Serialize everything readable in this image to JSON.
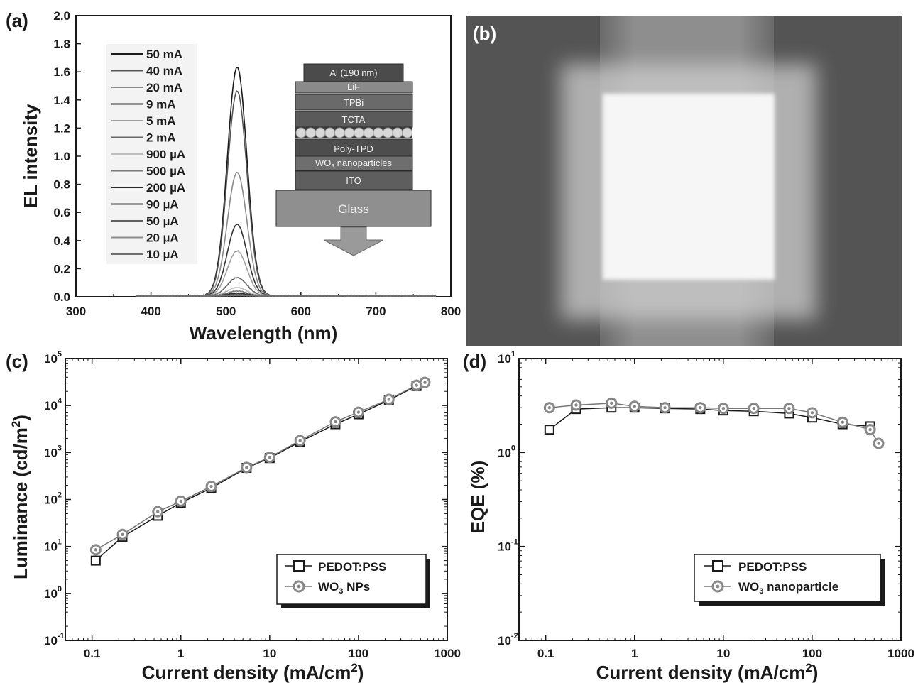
{
  "panels": {
    "a": "(a)",
    "b": "(b)",
    "c": "(c)",
    "d": "(d)"
  },
  "chart_data": [
    {
      "id": "a",
      "type": "line",
      "xlabel": "Wavelength (nm)",
      "ylabel": "EL intensity",
      "xlim": [
        300,
        800
      ],
      "ylim": [
        0.0,
        2.0
      ],
      "xticks": [
        "300",
        "400",
        "500",
        "600",
        "700",
        "800"
      ],
      "yticks": [
        "0.0",
        "0.2",
        "0.4",
        "0.6",
        "0.8",
        "1.0",
        "1.2",
        "1.4",
        "1.6",
        "1.8",
        "2.0"
      ],
      "x_range_measured": [
        380,
        780
      ],
      "peak_wavelength": 515,
      "series": [
        {
          "name": "50 mA",
          "peak": 1.63
        },
        {
          "name": "40 mA",
          "peak": 1.46
        },
        {
          "name": "20 mA",
          "peak": 0.88
        },
        {
          "name": "9 mA",
          "peak": 0.51
        },
        {
          "name": "5 mA",
          "peak": 0.32
        },
        {
          "name": "2 mA",
          "peak": 0.13
        },
        {
          "name": "900 µA",
          "peak": 0.06
        },
        {
          "name": "500 µA",
          "peak": 0.035
        },
        {
          "name": "200 µA",
          "peak": 0.02
        },
        {
          "name": "90 µA",
          "peak": 0.012
        },
        {
          "name": "50 µA",
          "peak": 0.008
        },
        {
          "name": "20 µA",
          "peak": 0.005
        },
        {
          "name": "10 µA",
          "peak": 0.003
        }
      ],
      "legend_placement": "top-left",
      "inset": {
        "layers": [
          "Al (190 nm)",
          "LiF",
          "TPBi",
          "TCTA",
          "Poly-TPD",
          "WO",
          "3",
          " nanoparticles",
          "ITO",
          "Glass"
        ]
      }
    },
    {
      "id": "c",
      "type": "line",
      "scale": "log-log",
      "xlabel": "Current density (mA/cm",
      "xlabel_sup": "2",
      "xlabel_end": ")",
      "ylabel": "Luminance (cd/m",
      "ylabel_sup": "2",
      "ylabel_end": ")",
      "xlim": [
        0.05,
        1000
      ],
      "ylim": [
        0.1,
        100000
      ],
      "xticks": [
        "0.1",
        "1",
        "10",
        "100",
        "1000"
      ],
      "yticks": [
        {
          "base": "10",
          "exp": "-1"
        },
        {
          "base": "10",
          "exp": "0"
        },
        {
          "base": "10",
          "exp": "1"
        },
        {
          "base": "10",
          "exp": "2"
        },
        {
          "base": "10",
          "exp": "3"
        },
        {
          "base": "10",
          "exp": "4"
        },
        {
          "base": "10",
          "exp": "5"
        }
      ],
      "legend_placement": "bottom-right",
      "series": [
        {
          "name": "PEDOT:PSS",
          "marker": "square",
          "x": [
            0.11,
            0.22,
            0.55,
            1.0,
            2.2,
            5.5,
            10,
            22,
            55,
            100,
            220,
            450
          ],
          "y": [
            5,
            16,
            45,
            85,
            175,
            470,
            760,
            1700,
            4000,
            6500,
            13000,
            26000
          ]
        },
        {
          "name": "WO",
          "name_sub": "3",
          "name_end": " NPs",
          "marker": "circle",
          "x": [
            0.11,
            0.22,
            0.55,
            1.0,
            2.2,
            5.5,
            10,
            22,
            55,
            100,
            220,
            450,
            560
          ],
          "y": [
            8.5,
            18,
            55,
            92,
            190,
            480,
            790,
            1800,
            4500,
            7200,
            13500,
            27000,
            31000
          ]
        }
      ]
    },
    {
      "id": "d",
      "type": "line",
      "scale": "log-log",
      "xlabel": "Current density (mA/cm",
      "xlabel_sup": "2",
      "xlabel_end": ")",
      "ylabel": "EQE (%)",
      "xlim": [
        0.05,
        1000
      ],
      "ylim": [
        0.01,
        10
      ],
      "xticks": [
        "0.1",
        "1",
        "10",
        "100",
        "1000"
      ],
      "yticks": [
        {
          "base": "10",
          "exp": "-2"
        },
        {
          "base": "10",
          "exp": "-1"
        },
        {
          "base": "10",
          "exp": "0"
        },
        {
          "base": "10",
          "exp": "1"
        }
      ],
      "yticks_plain": [
        "10",
        "10",
        "10",
        "10"
      ],
      "legend_placement": "bottom-right",
      "series": [
        {
          "name": "PEDOT:PSS",
          "marker": "square",
          "x": [
            0.11,
            0.22,
            0.55,
            1.0,
            2.2,
            5.5,
            10,
            22,
            55,
            100,
            220,
            450
          ],
          "y": [
            1.75,
            2.9,
            3.0,
            3.0,
            2.95,
            2.9,
            2.8,
            2.75,
            2.6,
            2.35,
            2.0,
            1.9
          ]
        },
        {
          "name": "WO",
          "name_sub": "3",
          "name_end": " nanoparticle",
          "marker": "circle",
          "x": [
            0.11,
            0.22,
            0.55,
            1.0,
            2.2,
            5.5,
            10,
            22,
            55,
            100,
            220,
            450,
            560
          ],
          "y": [
            3.0,
            3.2,
            3.35,
            3.1,
            3.0,
            3.0,
            2.95,
            2.95,
            2.95,
            2.65,
            2.1,
            1.75,
            1.25
          ]
        }
      ]
    }
  ],
  "photo": {
    "description_colors": {
      "background": "#555555",
      "emitting_pixel": "#f4f4f4"
    }
  }
}
